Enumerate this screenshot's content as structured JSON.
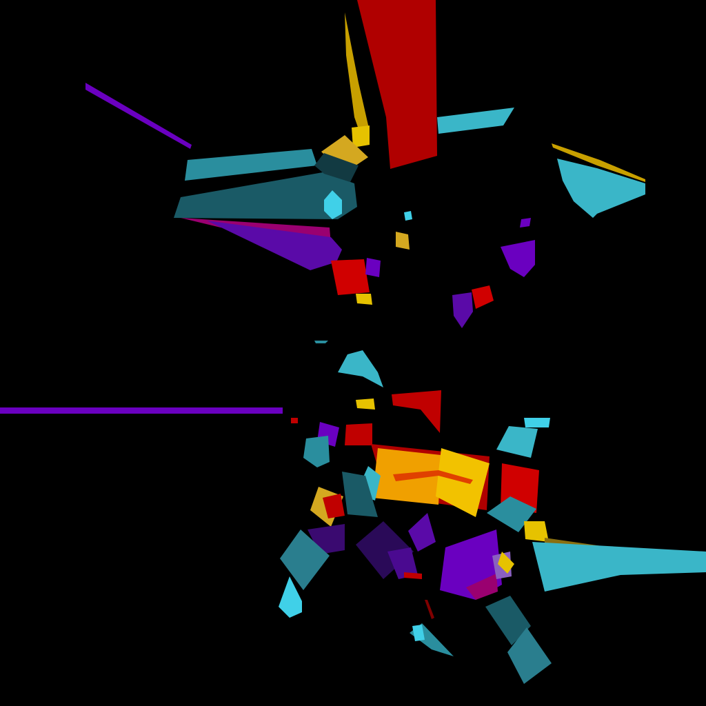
{
  "scene": {
    "description_free": true,
    "background": "#000000",
    "palette": {
      "red": "#b00000",
      "cyan": "#3ab6c8",
      "teal_dark": "#1a5a66",
      "teal": "#2a8e9e",
      "purple": "#6a00c0",
      "violet_dark": "#3a0a70",
      "yellow": "#e6b800",
      "gold": "#d4a017",
      "orange": "#f0a000",
      "magenta": "#9a0070",
      "light_cyan": "#40d0e8"
    }
  }
}
